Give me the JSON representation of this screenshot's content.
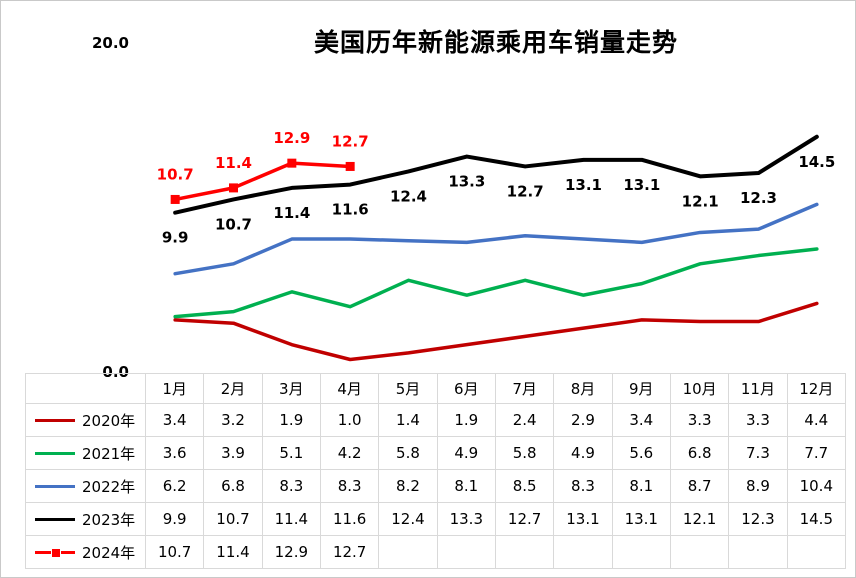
{
  "chart": {
    "y_axis": {
      "max_label": "20.0",
      "min_label": "0.0"
    }
  },
  "chart_data": {
    "type": "line",
    "title": "美国历年新能源乘用车销量走势",
    "categories": [
      "1月",
      "2月",
      "3月",
      "4月",
      "5月",
      "6月",
      "7月",
      "8月",
      "9月",
      "10月",
      "11月",
      "12月"
    ],
    "series": [
      {
        "name": "2020年",
        "color": "#C00000",
        "marker": "none",
        "data_labels": "none",
        "values": [
          3.4,
          3.2,
          1.9,
          1.0,
          1.4,
          1.9,
          2.4,
          2.9,
          3.4,
          3.3,
          3.3,
          4.4
        ]
      },
      {
        "name": "2021年",
        "color": "#00B050",
        "marker": "none",
        "data_labels": "none",
        "values": [
          3.6,
          3.9,
          5.1,
          4.2,
          5.8,
          4.9,
          5.8,
          4.9,
          5.6,
          6.8,
          7.3,
          7.7
        ]
      },
      {
        "name": "2022年",
        "color": "#4472C4",
        "marker": "none",
        "data_labels": "none",
        "values": [
          6.2,
          6.8,
          8.3,
          8.3,
          8.2,
          8.1,
          8.5,
          8.3,
          8.1,
          8.7,
          8.9,
          10.4
        ]
      },
      {
        "name": "2023年",
        "color": "#000000",
        "marker": "none",
        "data_labels": "below",
        "label_color": "#000000",
        "values": [
          9.9,
          10.7,
          11.4,
          11.6,
          12.4,
          13.3,
          12.7,
          13.1,
          13.1,
          12.1,
          12.3,
          14.5
        ]
      },
      {
        "name": "2024年",
        "color": "#FF0000",
        "marker": "square",
        "data_labels": "above",
        "label_color": "#FF0000",
        "values": [
          10.7,
          11.4,
          12.9,
          12.7
        ]
      }
    ],
    "ylim": [
      0,
      20
    ],
    "grid": false,
    "legend_position": "data-table-left",
    "value_format": "one-decimal"
  }
}
